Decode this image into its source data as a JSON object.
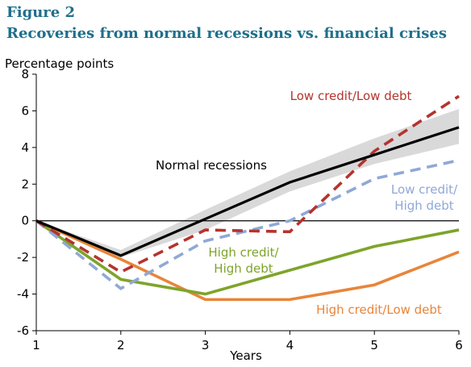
{
  "figure": {
    "title": "Figure 2",
    "subtitle": "Recoveries from normal recessions vs. financial crises"
  },
  "chart_data": {
    "type": "line",
    "ylabel": "Percentage points",
    "xlabel": "Years",
    "x": [
      1,
      2,
      3,
      4,
      5,
      6
    ],
    "xlim": [
      1,
      6
    ],
    "ylim": [
      -6,
      8
    ],
    "xticks": [
      "1",
      "2",
      "3",
      "4",
      "5",
      "6"
    ],
    "yticks": [
      "8",
      "6",
      "4",
      "2",
      "0",
      "-2",
      "-4",
      "-6"
    ],
    "grid": false,
    "zero_line": true,
    "band": {
      "series": "Normal recessions",
      "color": "#d9d9d9",
      "upper": [
        0,
        -1.6,
        0.6,
        2.7,
        4.5,
        6.1
      ],
      "lower": [
        0,
        -2.0,
        -0.5,
        1.6,
        3.1,
        4.2
      ]
    },
    "series": [
      {
        "name": "Normal recessions",
        "color": "#000000",
        "dash": "solid",
        "values": [
          0,
          -1.9,
          0.1,
          2.1,
          3.6,
          5.1
        ]
      },
      {
        "name": "Low credit/Low debt",
        "color": "#b5332e",
        "dash": "dashed",
        "values": [
          0,
          -2.8,
          -0.5,
          -0.6,
          3.8,
          6.8
        ]
      },
      {
        "name": "Low credit/\nHigh debt",
        "color": "#8fa8d6",
        "dash": "dashed",
        "values": [
          0,
          -3.7,
          -1.1,
          0.0,
          2.3,
          3.3
        ]
      },
      {
        "name": "High credit/\nHigh debt",
        "color": "#7ea42b",
        "dash": "solid",
        "values": [
          0,
          -3.2,
          -4.0,
          -2.7,
          -1.4,
          -0.5
        ]
      },
      {
        "name": "High credit/Low debt",
        "color": "#e8853a",
        "dash": "solid",
        "values": [
          0,
          -2.1,
          -4.3,
          -4.3,
          -3.5,
          -1.7
        ]
      }
    ]
  }
}
